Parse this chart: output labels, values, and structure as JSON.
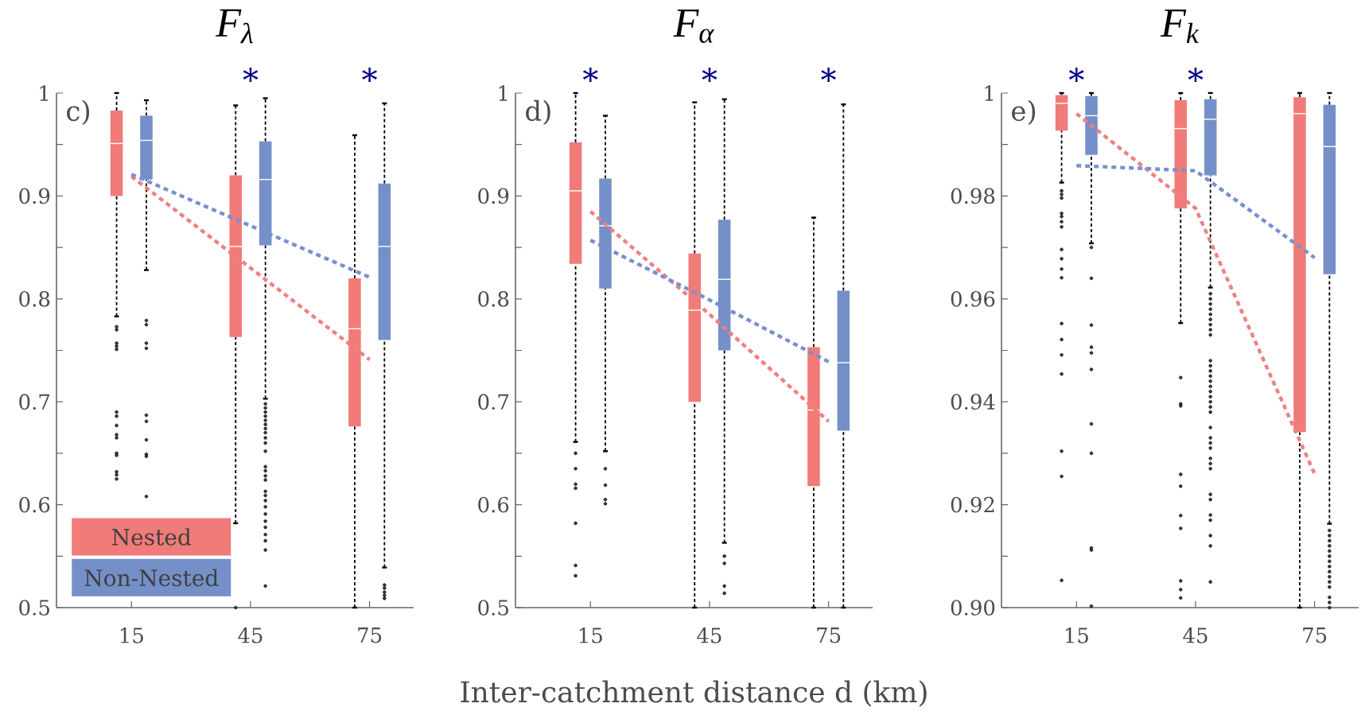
{
  "chart_data": [
    {
      "type": "box",
      "title": "F$_{λ}$",
      "categories": [
        "15",
        "45",
        "75"
      ],
      "ylim": [
        0.5,
        1
      ],
      "yticks": [
        0.5,
        {
          "value": 0.55,
          "label": null
        },
        0.6,
        {
          "value": 0.65,
          "label": null
        },
        0.7,
        {
          "value": 0.75,
          "label": null
        },
        0.8,
        {
          "value": 0.85,
          "label": null
        },
        0.9,
        {
          "value": 0.95,
          "label": null
        },
        1
      ],
      "legend": "bottom left",
      "series": [
        {
          "name": "Nested",
          "color": "#f07b78",
          "boxes": [
            {
              "low": 0.783,
              "q1": 0.9,
              "median": 0.951,
              "q3": 0.983,
              "high": 1.0,
              "outliers": [
                0.773,
                0.77,
                0.757,
                0.754,
                0.751,
                0.69,
                0.686,
                0.677,
                0.668,
                0.665,
                0.65,
                0.648,
                0.632,
                0.629,
                0.625
              ]
            },
            {
              "low": 0.582,
              "q1": 0.763,
              "median": 0.851,
              "q3": 0.92,
              "high": 0.988,
              "outliers": [
                0.5
              ]
            },
            {
              "low": 0.5,
              "q1": 0.676,
              "median": 0.771,
              "q3": 0.82,
              "high": 0.959
            }
          ]
        },
        {
          "name": "Non-Nested",
          "color": "#7590c8",
          "boxes": [
            {
              "low": 0.828,
              "q1": 0.916,
              "median": 0.954,
              "q3": 0.978,
              "high": 0.993,
              "outliers": [
                0.779,
                0.775,
                0.757,
                0.752,
                0.687,
                0.681,
                0.663,
                0.649,
                0.647,
                0.608
              ]
            },
            {
              "low": 0.703,
              "q1": 0.852,
              "median": 0.916,
              "q3": 0.953,
              "high": 0.995,
              "outliers": [
                0.698,
                0.694,
                0.69,
                0.686,
                0.682,
                0.678,
                0.674,
                0.67,
                0.665,
                0.66,
                0.652,
                0.637,
                0.633,
                0.628,
                0.624,
                0.613,
                0.609,
                0.604,
                0.598,
                0.591,
                0.584,
                0.578,
                0.571,
                0.565,
                0.556,
                0.521
              ]
            },
            {
              "low": 0.539,
              "q1": 0.76,
              "median": 0.851,
              "q3": 0.912,
              "high": 0.99,
              "outliers": [
                0.522,
                0.519,
                0.515,
                0.512,
                0.509
              ]
            }
          ]
        },
        {
          "type": "line",
          "color": "#f08080",
          "line_style": "dashed",
          "values": [
            0.919,
            0.83,
            0.741
          ]
        },
        {
          "type": "line",
          "color": "#7890d0",
          "line_style": "dashed",
          "values": [
            0.921,
            0.871,
            0.821
          ]
        }
      ],
      "annotations": [
        "c)",
        "*",
        "*"
      ]
    },
    {
      "type": "box",
      "title": "F$_{α}$",
      "xlabel": "Inter-catchment distance d (km)",
      "categories": [
        "15",
        "45",
        "75"
      ],
      "ylim": [
        0.5,
        1
      ],
      "yticks": [
        0.5,
        {
          "value": 0.55,
          "label": null
        },
        0.6,
        {
          "value": 0.65,
          "label": null
        },
        0.7,
        {
          "value": 0.75,
          "label": null
        },
        0.8,
        {
          "value": 0.85,
          "label": null
        },
        0.9,
        {
          "value": 0.95,
          "label": null
        },
        1
      ],
      "series": [
        {
          "color": "#f07b78",
          "boxes": [
            {
              "low": 0.661,
              "q1": 0.834,
              "median": 0.905,
              "q3": 0.952,
              "high": 1.0,
              "outliers": [
                0.65,
                0.635,
                0.62,
                0.616,
                0.582,
                0.541,
                0.531
              ]
            },
            {
              "low": 0.5,
              "q1": 0.7,
              "median": 0.789,
              "q3": 0.844,
              "high": 0.991
            },
            {
              "low": 0.5,
              "q1": 0.618,
              "median": 0.692,
              "q3": 0.753,
              "high": 0.879
            }
          ]
        },
        {
          "color": "#7590c8",
          "boxes": [
            {
              "low": 0.652,
              "q1": 0.81,
              "median": 0.871,
              "q3": 0.917,
              "high": 0.978,
              "outliers": [
                0.635,
                0.619,
                0.605,
                0.601
              ]
            },
            {
              "low": 0.563,
              "q1": 0.75,
              "median": 0.819,
              "q3": 0.877,
              "high": 0.994,
              "outliers": [
                0.55,
                0.543,
                0.521,
                0.514
              ]
            },
            {
              "low": 0.5,
              "q1": 0.672,
              "median": 0.738,
              "q3": 0.808,
              "high": 0.989
            }
          ]
        },
        {
          "type": "line",
          "color": "#f08080",
          "line_style": "dashed",
          "values": [
            0.885,
            0.785,
            0.681
          ]
        },
        {
          "type": "line",
          "color": "#7890d0",
          "line_style": "dashed",
          "values": [
            0.857,
            0.799,
            0.739
          ]
        }
      ],
      "annotations": [
        "d)",
        "*",
        "*",
        "*"
      ]
    },
    {
      "type": "box",
      "title": "F$_{k}$",
      "categories": [
        "15",
        "45",
        "75"
      ],
      "ylim": [
        0.9,
        1
      ],
      "yticks": [
        {
          "value": 0.9,
          "label": "0.90"
        },
        {
          "value": 0.91,
          "label": null
        },
        0.92,
        {
          "value": 0.93,
          "label": null
        },
        0.94,
        {
          "value": 0.95,
          "label": null
        },
        0.96,
        {
          "value": 0.97,
          "label": null
        },
        0.98,
        {
          "value": 0.99,
          "label": null
        },
        1
      ],
      "series": [
        {
          "color": "#f07b78",
          "boxes": [
            {
              "low": 0.9826,
              "q1": 0.9927,
              "median": 0.998,
              "q3": 0.9996,
              "high": 1.0,
              "outliers": [
                0.981,
                0.9803,
                0.9796,
                0.9766,
                0.976,
                0.975,
                0.974,
                0.9696,
                0.9678,
                0.9658,
                0.9641,
                0.9552,
                0.9521,
                0.9491,
                0.9454,
                0.9304,
                0.9255,
                0.9053
              ]
            },
            {
              "low": 0.9553,
              "q1": 0.9776,
              "median": 0.9931,
              "q3": 0.9986,
              "high": 1.0,
              "outliers": [
                0.9447,
                0.9396,
                0.9392,
                0.9259,
                0.9236,
                0.9179,
                0.9154,
                0.9052,
                0.9035,
                0.9019
              ]
            },
            {
              "low": 0.9,
              "q1": 0.9341,
              "median": 0.996,
              "q3": 0.9992,
              "high": 1.0
            }
          ]
        },
        {
          "color": "#7590c8",
          "boxes": [
            {
              "low": 0.9708,
              "q1": 0.988,
              "median": 0.9956,
              "q3": 0.9994,
              "high": 1.0,
              "outliers": [
                0.97,
                0.964,
                0.9549,
                0.9506,
                0.9495,
                0.9463,
                0.9357,
                0.93,
                0.9116,
                0.9112,
                0.9003
              ]
            },
            {
              "low": 0.9622,
              "q1": 0.984,
              "median": 0.9949,
              "q3": 0.9988,
              "high": 1.0,
              "outliers": [
                0.961,
                0.96,
                0.959,
                0.958,
                0.957,
                0.956,
                0.955,
                0.954,
                0.953,
                0.948,
                0.947,
                0.946,
                0.945,
                0.944,
                0.943,
                0.942,
                0.941,
                0.94,
                0.939,
                0.938,
                0.935,
                0.933,
                0.932,
                0.931,
                0.929,
                0.928,
                0.927,
                0.922,
                0.921,
                0.918,
                0.917,
                0.914,
                0.912,
                0.905
              ]
            },
            {
              "low": 0.9163,
              "q1": 0.9648,
              "median": 0.9896,
              "q3": 0.9977,
              "high": 1.0,
              "outliers": [
                0.915,
                0.914,
                0.913,
                0.912,
                0.911,
                0.91,
                0.909,
                0.908,
                0.907,
                0.906,
                0.905,
                0.904,
                0.902,
                0.901,
                0.9
              ]
            }
          ]
        },
        {
          "type": "line",
          "color": "#f08080",
          "line_style": "dashed",
          "values": [
            0.996,
            0.9776,
            0.926
          ]
        },
        {
          "type": "line",
          "color": "#7890d0",
          "line_style": "dashed",
          "values": [
            0.9859,
            0.9849,
            0.968
          ]
        }
      ],
      "annotations": [
        "e)",
        "*",
        "*"
      ]
    }
  ]
}
